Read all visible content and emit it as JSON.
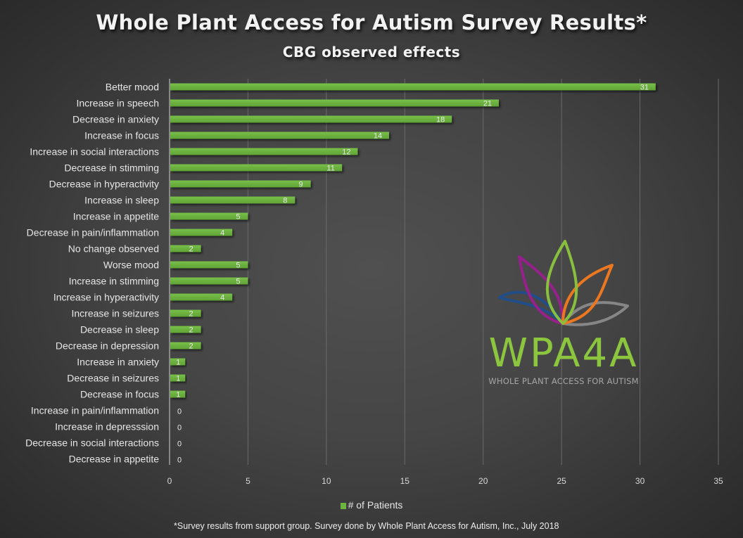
{
  "chart_data": {
    "type": "bar",
    "orientation": "horizontal",
    "title": "Whole Plant Access for Autism Survey Results*",
    "subtitle": "CBG observed effects",
    "xlabel": "",
    "ylabel": "",
    "xlim": [
      0,
      35
    ],
    "x_ticks": [
      0,
      5,
      10,
      15,
      20,
      25,
      30,
      35
    ],
    "grid": true,
    "legend_position": "bottom",
    "categories": [
      "Better mood",
      "Increase in speech",
      "Decrease in anxiety",
      "Increase in focus",
      "Increase in social interactions",
      "Decrease in stimming",
      "Decrease in hyperactivity",
      "Increase in sleep",
      "Increase in appetite",
      "Decrease in pain/inflammation",
      "No change observed",
      "Worse mood",
      "Increase in stimming",
      "Increase in hyperactivity",
      "Increase in seizures",
      "Decrease in sleep",
      "Decrease in depression",
      "Increase in anxiety",
      "Decrease in seizures",
      "Decrease in focus",
      "Increase in pain/inflammation",
      "Increase in depresssion",
      "Decrease in social interactions",
      "Decrease in appetite"
    ],
    "series": [
      {
        "name": "# of Patients",
        "color": "#6db33f",
        "values": [
          31,
          21,
          18,
          14,
          12,
          11,
          9,
          8,
          5,
          4,
          2,
          5,
          5,
          4,
          2,
          2,
          2,
          1,
          1,
          1,
          0,
          0,
          0,
          0
        ]
      }
    ]
  },
  "legend": {
    "label": "# of Patients"
  },
  "footnote": "*Survey results from support group.  Survey done by Whole Plant Access for Autism, Inc., July 2018",
  "logo": {
    "wordmark": "WPA4A",
    "tagline": "WHOLE PLANT ACCESS FOR AUTISM",
    "colors": {
      "green": "#8cc63f",
      "purple": "#9b1f8f",
      "orange": "#f47b20",
      "blue": "#1f4e8c",
      "gray": "#8a8a8a"
    }
  }
}
